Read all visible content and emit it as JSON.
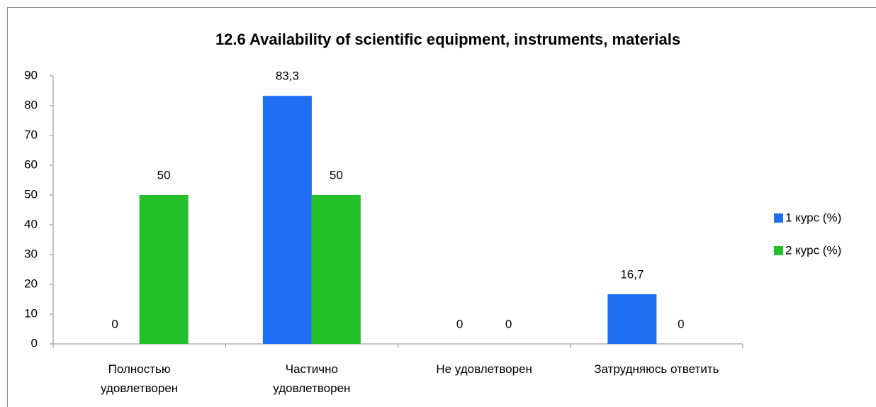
{
  "chart_data": {
    "type": "bar",
    "title": "12.6 Availability of scientific equipment, instruments, materials",
    "categories": [
      "Полностью удовлетворен",
      "Частично удовлетворен",
      "Не удовлетворен",
      "Затрудняюсь ответить"
    ],
    "series": [
      {
        "name": "1 курс (%)",
        "color": "#1f6ff2",
        "values": [
          0,
          83.3,
          0,
          16.7
        ],
        "value_labels": [
          "0",
          "83,3",
          "0",
          "16,7"
        ]
      },
      {
        "name": "2 курс (%)",
        "color": "#22c12c",
        "values": [
          50,
          50,
          0,
          0
        ],
        "value_labels": [
          "50",
          "50",
          "0",
          "0"
        ]
      }
    ],
    "ylim": [
      0,
      90
    ],
    "yticks": [
      0,
      10,
      20,
      30,
      40,
      50,
      60,
      70,
      80,
      90
    ],
    "grid": false,
    "legend": "right"
  }
}
